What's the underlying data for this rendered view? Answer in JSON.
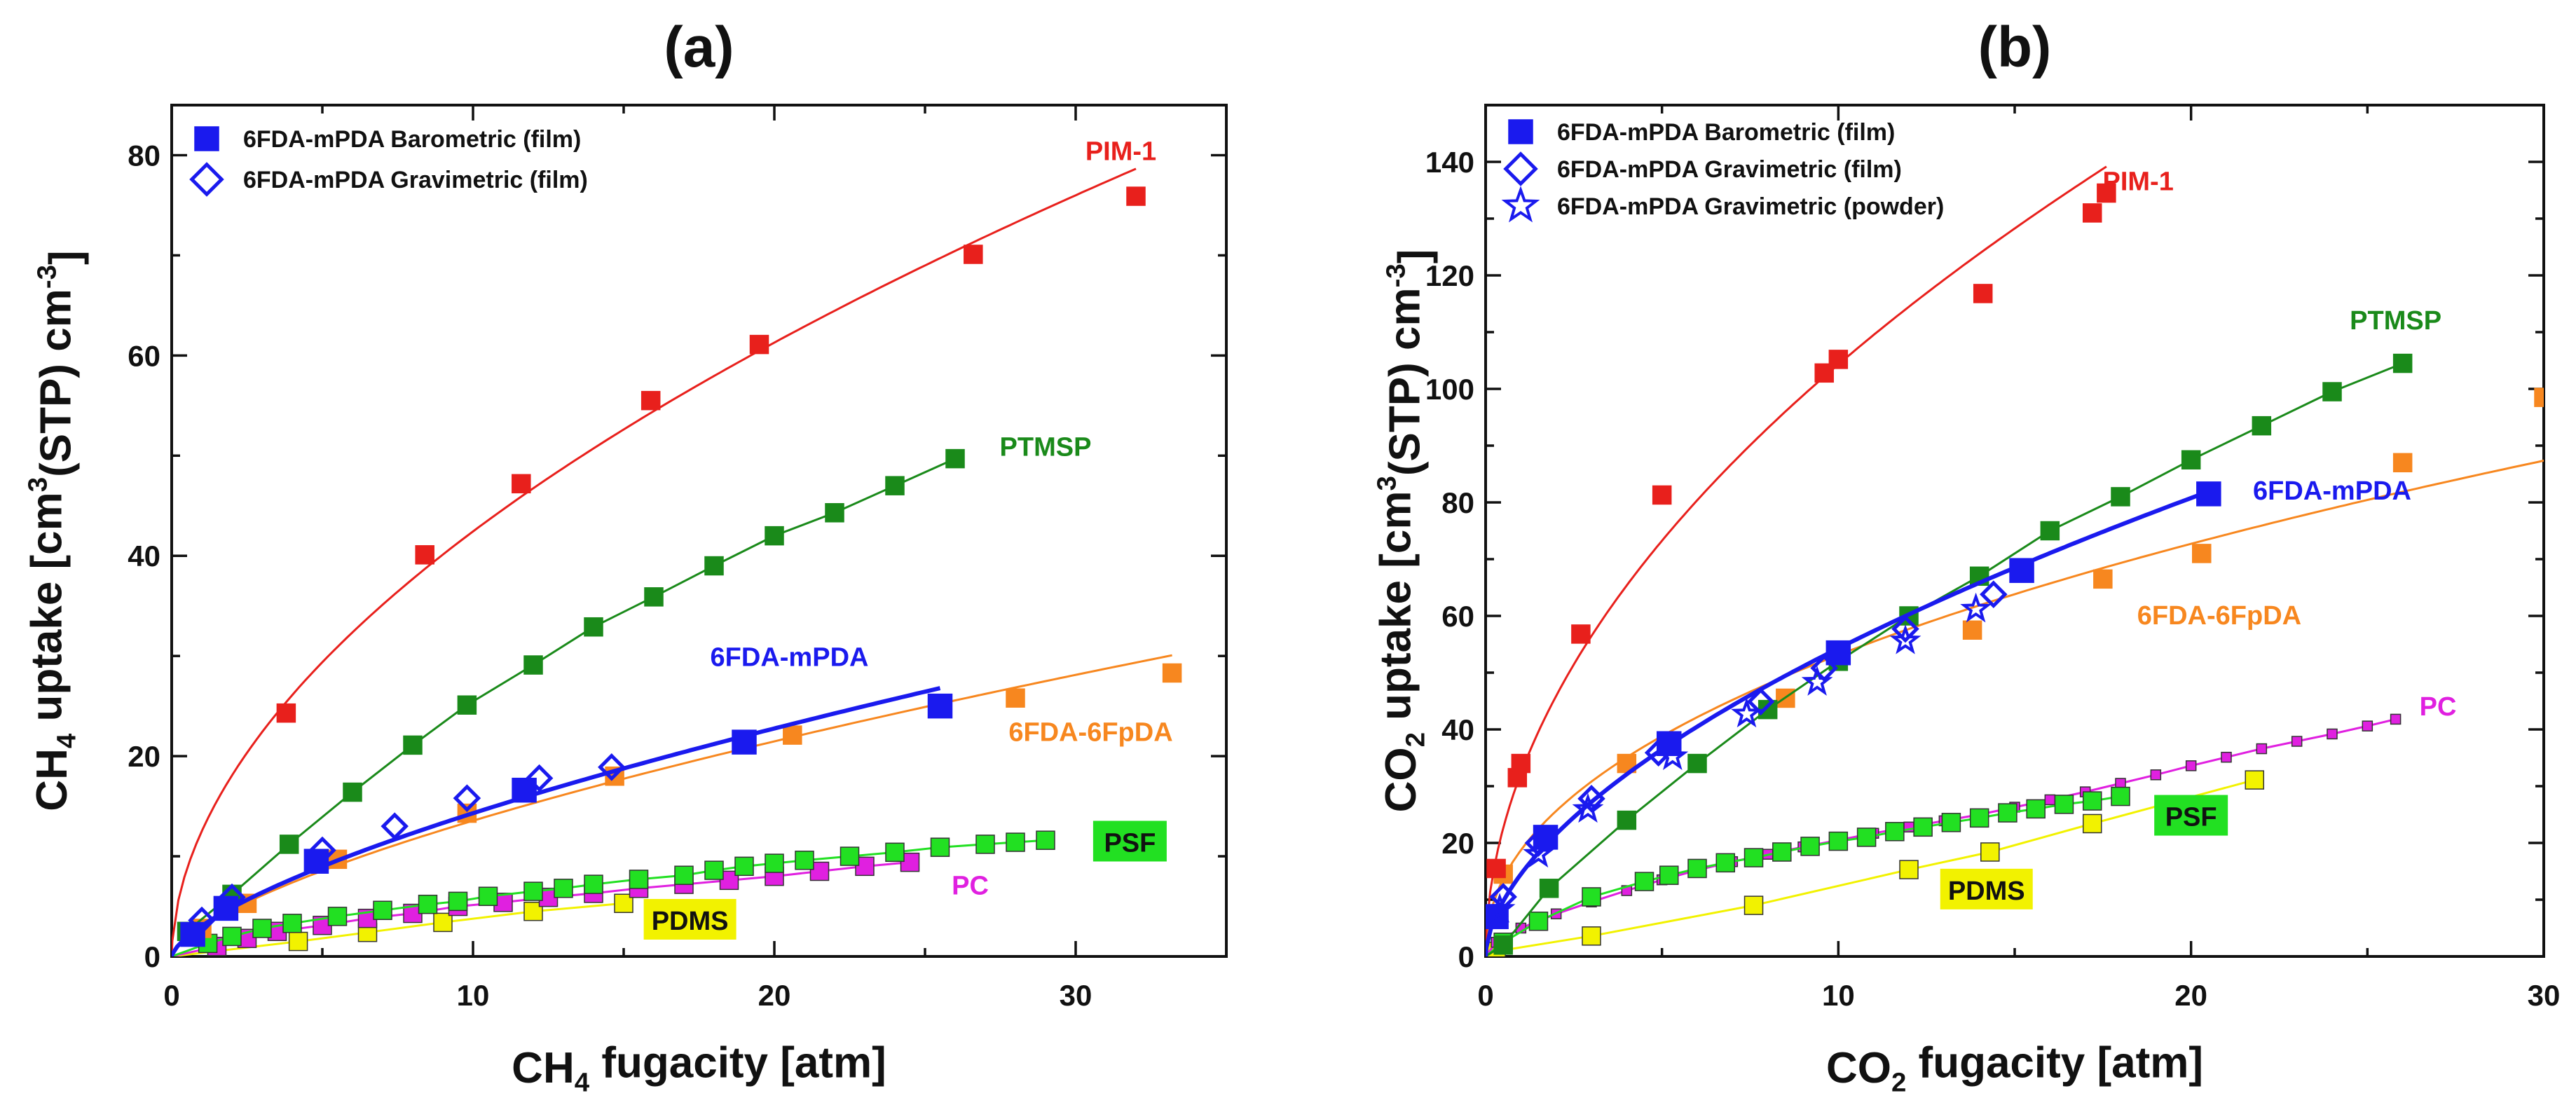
{
  "colors": {
    "PIM-1": "#e8201c",
    "PTMSP": "#1a8a1a",
    "6FDA-mPDA": "#1a1aee",
    "6FDA-6FpDA": "#f7871f",
    "PSF": "#22e022",
    "PC": "#e020e0",
    "PDMS": "#f2f200"
  },
  "chart_data": [
    {
      "type": "scatter",
      "panel": "(a)",
      "title": "(a)",
      "xlabel_parts": [
        "CH",
        "4",
        " fugacity [atm]"
      ],
      "ylabel_parts": [
        "CH",
        "4",
        " uptake [cm",
        "3",
        "(STP) cm",
        "-3",
        "]"
      ],
      "xlim": [
        0,
        35
      ],
      "ylim": [
        0,
        85
      ],
      "xticks": [
        0,
        10,
        20,
        30
      ],
      "yticks": [
        0,
        20,
        40,
        60,
        80
      ],
      "legend": [
        {
          "label": "6FDA-mPDA Barometric (film)",
          "marker": "square-filled",
          "color": "#1a1aee"
        },
        {
          "label": "6FDA-mPDA Gravimetric (film)",
          "marker": "diamond-open",
          "color": "#1a1aee"
        }
      ],
      "series": [
        {
          "name": "PIM-1",
          "color": "#e8201c",
          "marker": "square",
          "curve": "fit",
          "x": [
            3.8,
            8.4,
            11.6,
            15.9,
            19.5,
            26.6,
            32.0
          ],
          "y": [
            24.3,
            40.1,
            47.2,
            55.5,
            61.1,
            70.1,
            75.9
          ]
        },
        {
          "name": "PTMSP",
          "color": "#1a8a1a",
          "marker": "square",
          "curve": "connect",
          "x": [
            0.5,
            2.0,
            3.9,
            6.0,
            8.0,
            9.8,
            12.0,
            14.0,
            16.0,
            18.0,
            20.0,
            22.0,
            24.0,
            26.0
          ],
          "y": [
            2.5,
            6.2,
            11.2,
            16.4,
            21.1,
            25.1,
            29.1,
            32.9,
            35.9,
            39.0,
            42.0,
            44.3,
            47.0,
            49.7
          ]
        },
        {
          "name": "6FDA-6FpDA",
          "color": "#f7871f",
          "marker": "square",
          "curve": "fit",
          "x": [
            1.0,
            2.5,
            5.5,
            9.8,
            14.7,
            20.6,
            28.0,
            33.2
          ],
          "y": [
            2.8,
            5.3,
            9.7,
            14.3,
            18.0,
            22.1,
            25.8,
            28.3
          ]
        },
        {
          "name": "6FDA-mPDA",
          "color": "#1a1aee",
          "marker": "square",
          "curve": "fit",
          "x": [
            0.7,
            1.8,
            4.8,
            11.7,
            19.0,
            25.5
          ],
          "y": [
            2.2,
            4.8,
            9.5,
            16.6,
            21.4,
            25.0
          ]
        },
        {
          "name": "6FDA-mPDA Gravimetric (film)",
          "color": "#1a1aee",
          "marker": "diamond",
          "curve": "none",
          "x": [
            1.0,
            2.0,
            5.0,
            7.4,
            9.8,
            12.2,
            14.6
          ],
          "y": [
            3.6,
            5.9,
            10.6,
            13.0,
            15.8,
            17.8,
            18.9
          ]
        },
        {
          "name": "PSF",
          "color": "#22e022",
          "marker": "square",
          "curve": "connect",
          "x": [
            1.2,
            2.0,
            3.0,
            4.0,
            5.5,
            7.0,
            8.5,
            9.5,
            10.5,
            12.0,
            13.0,
            14.0,
            15.5,
            17.0,
            18.0,
            19.0,
            20.0,
            21.0,
            22.5,
            24.0,
            25.5,
            27.0,
            28.0,
            29.0
          ],
          "y": [
            1.3,
            2.0,
            2.8,
            3.3,
            4.0,
            4.6,
            5.2,
            5.5,
            6.0,
            6.5,
            6.8,
            7.2,
            7.7,
            8.1,
            8.6,
            9.0,
            9.3,
            9.6,
            10.0,
            10.4,
            10.9,
            11.2,
            11.4,
            11.6
          ]
        },
        {
          "name": "PC",
          "color": "#e020e0",
          "marker": "square",
          "curve": "connect",
          "x": [
            1.5,
            2.5,
            3.5,
            5.0,
            6.5,
            8.0,
            9.5,
            11.0,
            12.5,
            14.0,
            15.5,
            17.0,
            18.5,
            20.0,
            21.5,
            23.0,
            24.5
          ],
          "y": [
            1.0,
            1.8,
            2.5,
            3.1,
            3.8,
            4.3,
            5.0,
            5.4,
            5.9,
            6.3,
            6.8,
            7.2,
            7.6,
            8.0,
            8.5,
            9.0,
            9.4
          ]
        },
        {
          "name": "PDMS",
          "color": "#f2f200",
          "marker": "square",
          "curve": "connect",
          "x": [
            4.2,
            6.5,
            9.0,
            12.0,
            15.0
          ],
          "y": [
            1.5,
            2.4,
            3.4,
            4.5,
            5.3
          ]
        }
      ],
      "labels": [
        {
          "text": "PIM-1",
          "series": "PIM-1",
          "x": 31.5,
          "y": 79.5
        },
        {
          "text": "PTMSP",
          "series": "PTMSP",
          "x": 29.0,
          "y": 50.0
        },
        {
          "text": "6FDA-mPDA",
          "series": "6FDA-mPDA",
          "x": 20.5,
          "y": 29.0
        },
        {
          "text": "6FDA-6FpDA",
          "series": "6FDA-6FpDA",
          "x": 30.5,
          "y": 21.5
        },
        {
          "text": "PC",
          "series": "PC",
          "x": 26.5,
          "y": 6.2
        }
      ],
      "boxed_labels": [
        {
          "text": "PSF",
          "series": "PSF",
          "x": 31.8,
          "y": 11.3
        },
        {
          "text": "PDMS",
          "series": "PDMS",
          "x": 17.2,
          "y": 3.5
        }
      ]
    },
    {
      "type": "scatter",
      "panel": "(b)",
      "title": "(b)",
      "xlabel_parts": [
        "CO",
        "2",
        " fugacity [atm]"
      ],
      "ylabel_parts": [
        "CO",
        "2",
        " uptake [cm",
        "3",
        "(STP) cm",
        "-3",
        "]"
      ],
      "xlim": [
        0,
        30
      ],
      "ylim": [
        0,
        150
      ],
      "xticks": [
        0,
        10,
        20,
        30
      ],
      "yticks": [
        0,
        20,
        40,
        60,
        80,
        100,
        120,
        140
      ],
      "legend": [
        {
          "label": "6FDA-mPDA Barometric (film)",
          "marker": "square-filled",
          "color": "#1a1aee"
        },
        {
          "label": "6FDA-mPDA Gravimetric (film)",
          "marker": "diamond-open",
          "color": "#1a1aee"
        },
        {
          "label": "6FDA-mPDA Gravimetric (powder)",
          "marker": "star-open",
          "color": "#1a1aee"
        }
      ],
      "series": [
        {
          "name": "PIM-1",
          "color": "#e8201c",
          "marker": "square",
          "curve": "fit",
          "x": [
            0.3,
            0.9,
            1.0,
            2.7,
            5.0,
            9.6,
            10.0,
            14.1,
            17.2,
            17.6
          ],
          "y": [
            15.5,
            31.5,
            34.0,
            56.8,
            81.3,
            102.8,
            105.2,
            116.8,
            131.0,
            134.5
          ]
        },
        {
          "name": "PTMSP",
          "color": "#1a8a1a",
          "marker": "square",
          "curve": "connect",
          "x": [
            0.5,
            1.8,
            4.0,
            6.0,
            8.0,
            10.0,
            12.0,
            14.0,
            16.0,
            18.0,
            20.0,
            22.0,
            24.0,
            26.0
          ],
          "y": [
            2.0,
            12.0,
            24.0,
            34.0,
            43.5,
            52.0,
            60.0,
            67.0,
            75.0,
            81.0,
            87.5,
            93.5,
            99.5,
            104.5
          ]
        },
        {
          "name": "6FDA-6FpDA",
          "color": "#f7871f",
          "marker": "square",
          "curve": "fit",
          "x": [
            0.5,
            4.0,
            8.5,
            13.8,
            17.5,
            20.3,
            26.0,
            30.0
          ],
          "y": [
            14.5,
            34.0,
            45.5,
            57.5,
            66.5,
            71.0,
            87.0,
            98.5
          ]
        },
        {
          "name": "6FDA-mPDA",
          "color": "#1a1aee",
          "marker": "square",
          "curve": "fit",
          "x": [
            0.3,
            1.7,
            5.2,
            10.0,
            15.2,
            20.5
          ],
          "y": [
            7.0,
            21.0,
            37.5,
            53.5,
            68.0,
            81.5
          ]
        },
        {
          "name": "6FDA-mPDA Gravimetric (film)",
          "color": "#1a1aee",
          "marker": "diamond",
          "curve": "none",
          "x": [
            0.5,
            1.5,
            3.0,
            4.9,
            7.8,
            9.6,
            11.9,
            14.4
          ],
          "y": [
            10.5,
            20.0,
            27.8,
            35.9,
            44.9,
            50.8,
            57.7,
            63.8
          ]
        },
        {
          "name": "6FDA-mPDA Gravimetric (powder)",
          "color": "#1a1aee",
          "marker": "star",
          "curve": "none",
          "x": [
            0.4,
            1.5,
            2.9,
            5.3,
            7.4,
            9.4,
            11.9,
            13.9
          ],
          "y": [
            8.3,
            18.0,
            25.9,
            35.2,
            42.7,
            48.3,
            55.6,
            61.2
          ]
        },
        {
          "name": "PSF",
          "color": "#22e022",
          "marker": "square",
          "curve": "connect",
          "x": [
            0.5,
            1.5,
            3.0,
            4.5,
            5.2,
            6.0,
            6.8,
            7.6,
            8.4,
            9.2,
            10.0,
            10.8,
            11.6,
            12.4,
            13.2,
            14.0,
            14.8,
            15.6,
            16.4,
            17.2,
            18.0
          ],
          "y": [
            2.5,
            6.2,
            10.5,
            13.2,
            14.3,
            15.5,
            16.5,
            17.4,
            18.4,
            19.4,
            20.3,
            21.0,
            22.0,
            22.8,
            23.6,
            24.4,
            25.3,
            26.0,
            26.8,
            27.4,
            28.2
          ]
        },
        {
          "name": "PC",
          "color": "#e020e0",
          "marker": "square",
          "curve": "connect",
          "x": [
            0.3,
            1.0,
            2.0,
            3.0,
            4.0,
            5.0,
            6.0,
            7.0,
            8.0,
            9.0,
            10.0,
            11.0,
            12.0,
            13.0,
            14.0,
            15.0,
            16.0,
            17.0,
            18.0,
            19.0,
            20.0,
            21.0,
            22.0,
            23.0,
            24.0,
            25.0,
            25.8
          ],
          "y": [
            2.5,
            5.0,
            7.5,
            9.6,
            11.6,
            13.5,
            15.2,
            16.7,
            18.0,
            19.3,
            20.5,
            21.7,
            22.8,
            23.9,
            25.0,
            26.3,
            27.6,
            29.0,
            30.5,
            32.0,
            33.6,
            35.1,
            36.6,
            37.9,
            39.2,
            40.6,
            41.8
          ]
        },
        {
          "name": "PDMS",
          "color": "#f2f200",
          "marker": "square",
          "curve": "connect",
          "x": [
            0.3,
            3.0,
            7.6,
            12.0,
            14.3,
            17.2,
            21.8
          ],
          "y": [
            0.9,
            3.6,
            9.0,
            15.3,
            18.4,
            23.4,
            31.1
          ]
        }
      ],
      "labels": [
        {
          "text": "PIM-1",
          "series": "PIM-1",
          "x": 18.5,
          "y": 135.0
        },
        {
          "text": "PTMSP",
          "series": "PTMSP",
          "x": 25.8,
          "y": 110.5
        },
        {
          "text": "6FDA-mPDA",
          "series": "6FDA-mPDA",
          "x": 24.0,
          "y": 80.5
        },
        {
          "text": "6FDA-6FpDA",
          "series": "6FDA-6FpDA",
          "x": 20.8,
          "y": 58.5
        },
        {
          "text": "PC",
          "series": "PC",
          "x": 27.0,
          "y": 42.5
        }
      ],
      "boxed_labels": [
        {
          "text": "PSF",
          "series": "PSF",
          "x": 20.0,
          "y": 24.5
        },
        {
          "text": "PDMS",
          "series": "PDMS",
          "x": 14.2,
          "y": 11.5
        }
      ]
    }
  ]
}
